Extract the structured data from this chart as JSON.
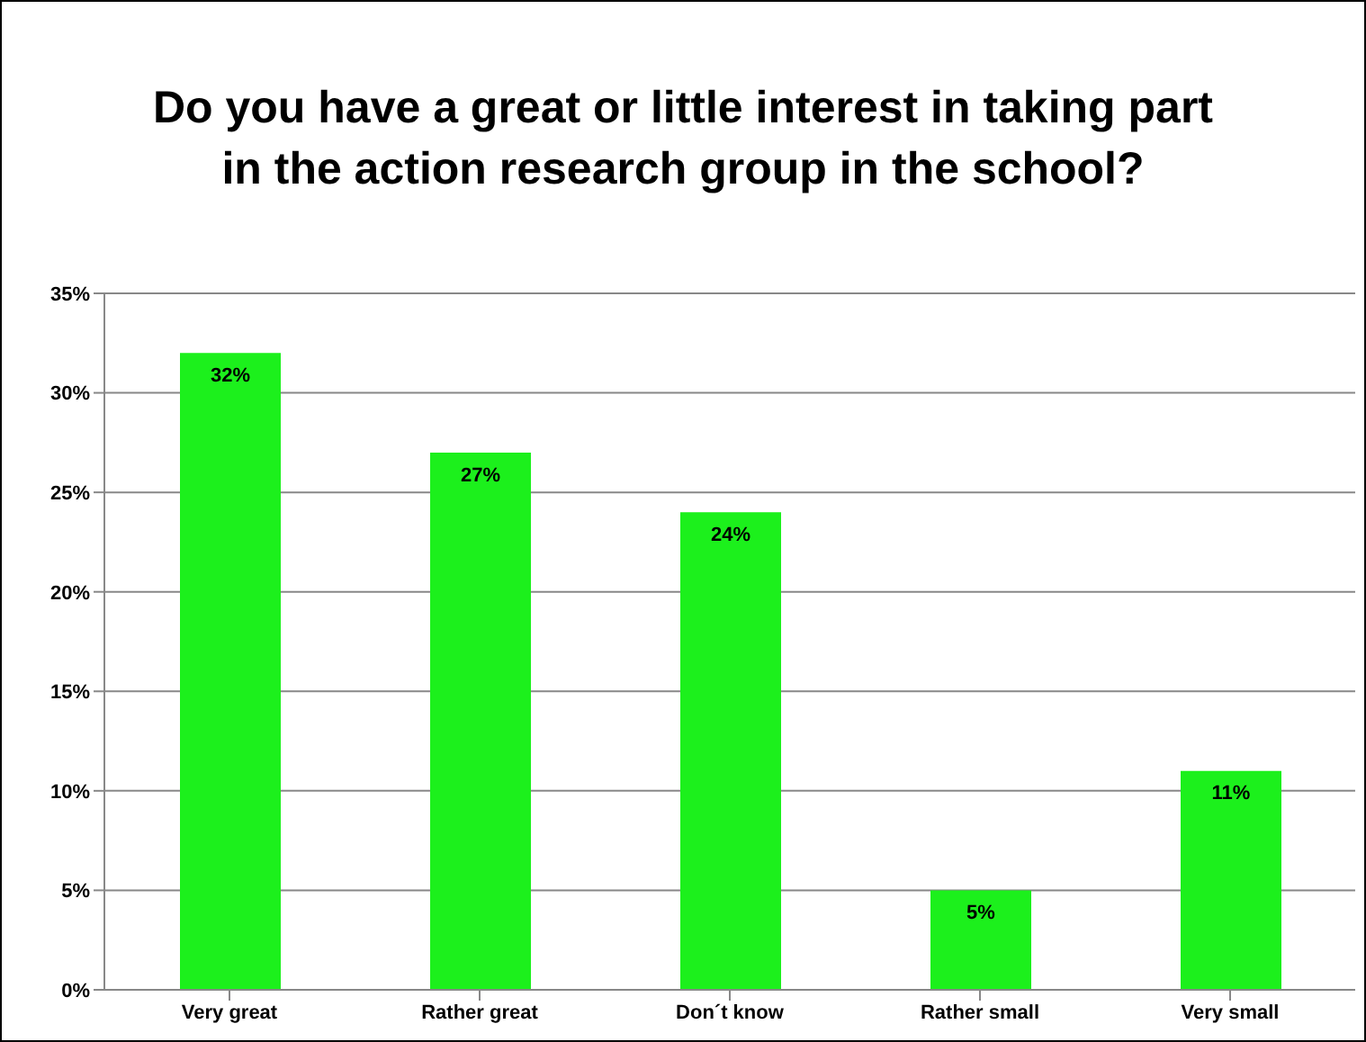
{
  "chart_data": {
    "type": "bar",
    "title": "Do you have a great or little interest in taking part in the action research group in the school?",
    "categories": [
      "Very great",
      "Rather great",
      "Don´t know",
      "Rather small",
      "Very small"
    ],
    "values": [
      32,
      27,
      24,
      5,
      11
    ],
    "value_labels": [
      "32%",
      "27%",
      "24%",
      "5%",
      "11%"
    ],
    "color": "#1cf01c",
    "ylim": [
      0,
      35
    ],
    "yticks": [
      {
        "value": 0,
        "label": "0%"
      },
      {
        "value": 5,
        "label": "5%"
      },
      {
        "value": 10,
        "label": "10%"
      },
      {
        "value": 15,
        "label": "15%"
      },
      {
        "value": 20,
        "label": "20%"
      },
      {
        "value": 25,
        "label": "25%"
      },
      {
        "value": 30,
        "label": "30%"
      },
      {
        "value": 35,
        "label": "35%"
      }
    ],
    "grid": "y",
    "legend": false
  }
}
